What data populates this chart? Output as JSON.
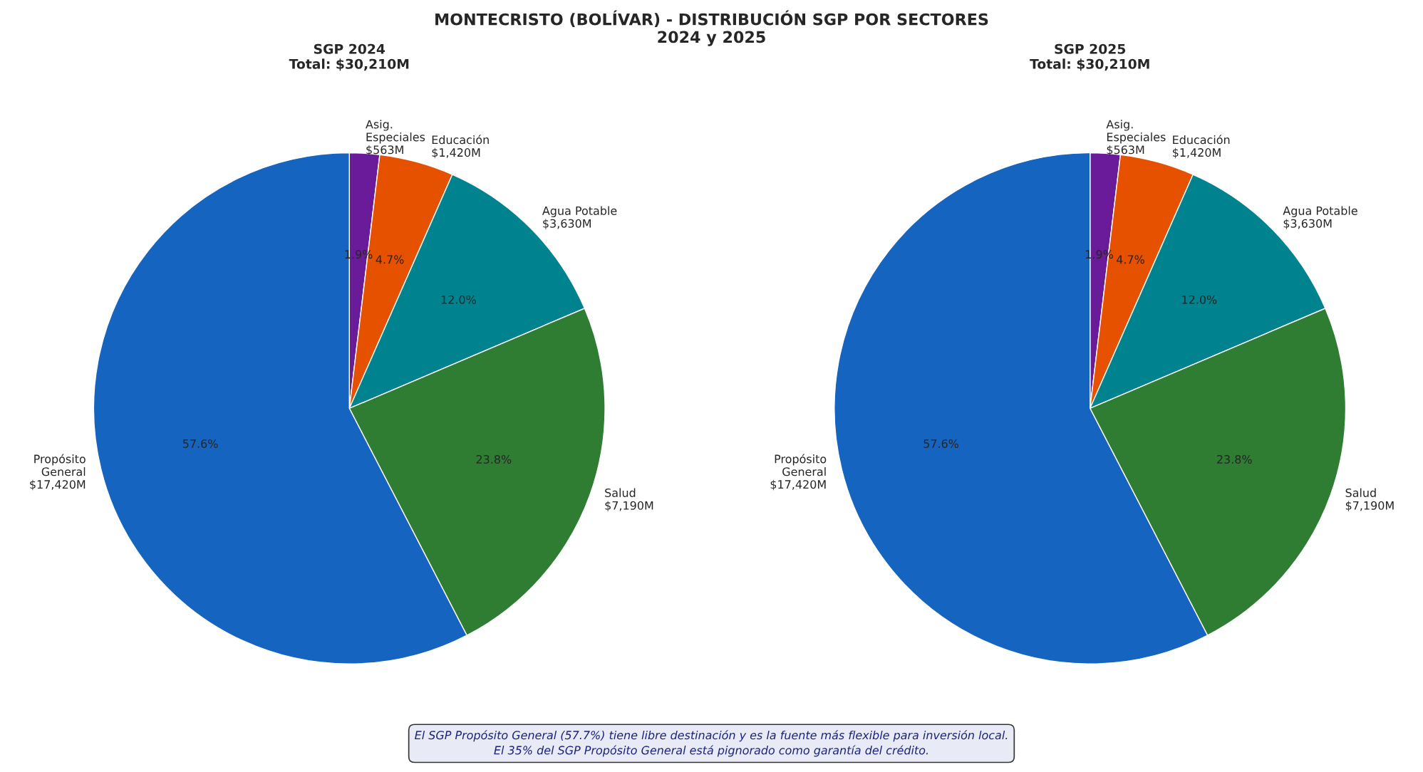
{
  "chart_data": [
    {
      "type": "other",
      "title": "MONTECRISTO (BOLÍVAR) - DISTRIBUCIÓN SGP POR SECTORES\n2024 y 2025",
      "annotations": [
        "El SGP Propósito General (57.7%) tiene libre destinación y es la fuente más flexible para inversión local.\nEl 35% del SGP Propósito General está pignorado como garantía del crédito."
      ]
    },
    {
      "type": "pie",
      "title": "SGP 2024\nTotal: $30,210M",
      "categories": [
        "Asig.\nEspeciales\n$563M",
        "Educación\n$1,420M",
        "Agua Potable\n$3,630M",
        "Salud\n$7,190M",
        "Propósito\nGeneral\n$17,420M"
      ],
      "values": [
        1.9,
        4.7,
        12.0,
        23.8,
        57.6
      ],
      "value_labels": [
        "1.9%",
        "4.7%",
        "12.0%",
        "23.8%",
        "57.6%"
      ],
      "colors": [
        "#6a1b9a",
        "#e65100",
        "#00838f",
        "#2e7d32",
        "#1565c0"
      ]
    },
    {
      "type": "pie",
      "title": "SGP 2025\nTotal: $30,210M",
      "categories": [
        "Asig.\nEspeciales\n$563M",
        "Educación\n$1,420M",
        "Agua Potable\n$3,630M",
        "Salud\n$7,190M",
        "Propósito\nGeneral\n$17,420M"
      ],
      "values": [
        1.9,
        4.7,
        12.0,
        23.8,
        57.6
      ],
      "value_labels": [
        "1.9%",
        "4.7%",
        "12.0%",
        "23.8%",
        "57.6%"
      ],
      "colors": [
        "#6a1b9a",
        "#e65100",
        "#00838f",
        "#2e7d32",
        "#1565c0"
      ]
    }
  ]
}
